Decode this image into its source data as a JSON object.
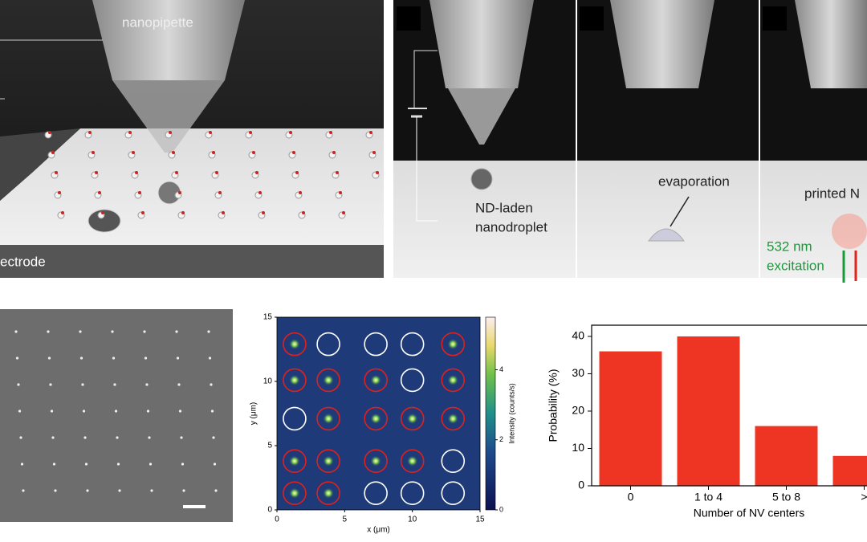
{
  "top_left": {
    "pipette_label": "nanopipette",
    "electrode_label": "ectrode"
  },
  "top_right": {
    "droplet_label": [
      "ND-laden",
      "nanodroplet"
    ],
    "evaporation_label": "evaporation",
    "printed_label": "printed N",
    "excitation_label": [
      "532 nm",
      "excitation"
    ]
  },
  "chart_data": [
    {
      "type": "heatmap",
      "xlabel": "x (μm)",
      "ylabel": "y (μm)",
      "xlim": [
        0,
        15
      ],
      "ylim": [
        0,
        15
      ],
      "xticks": [
        0,
        5,
        10,
        15
      ],
      "yticks": [
        0,
        5,
        10,
        15
      ],
      "colorbar": {
        "label": "Intensity (counts/s)",
        "lim": [
          0,
          5.5
        ],
        "ticks": [
          0,
          2,
          4
        ]
      },
      "circle_colors": [
        [
          "#e0201c",
          "#ffffff",
          "#ffffff",
          "#ffffff",
          "#e0201c"
        ],
        [
          "#e0201c",
          "#e0201c",
          "#e0201c",
          "#ffffff",
          "#e0201c"
        ],
        [
          "#ffffff",
          "#e0201c",
          "#e0201c",
          "#e0201c",
          "#e0201c"
        ],
        [
          "#e0201c",
          "#e0201c",
          "#e0201c",
          "#e0201c",
          "#ffffff"
        ],
        [
          "#e0201c",
          "#e0201c",
          "#ffffff",
          "#ffffff",
          "#ffffff"
        ]
      ]
    },
    {
      "type": "bar",
      "xlabel": "Number of NV centers",
      "ylabel": "Probability (%)",
      "categories": [
        "0",
        "1 to 4",
        "5 to 8",
        ">"
      ],
      "values": [
        36,
        40,
        16,
        8
      ],
      "color": "#ee3524",
      "ylim": [
        0,
        43
      ],
      "yticks": [
        0,
        10,
        20,
        30,
        40
      ]
    }
  ]
}
